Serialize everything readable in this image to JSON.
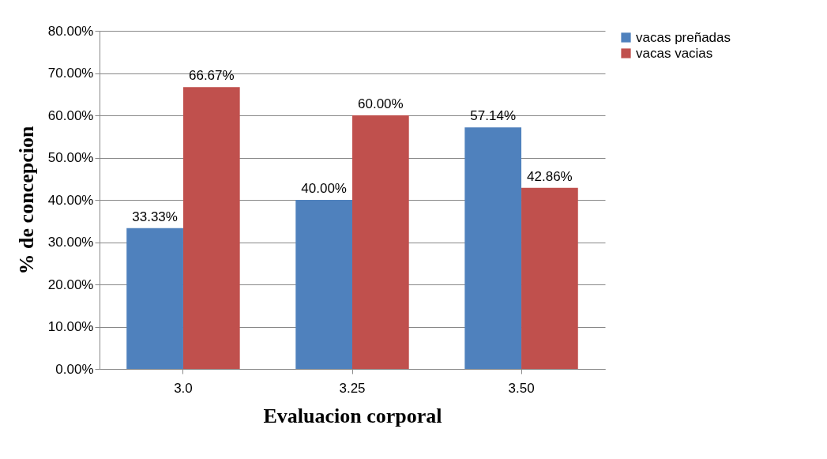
{
  "chart_data": {
    "type": "bar",
    "xlabel": "Evaluacion corporal",
    "ylabel": "% de concepcion",
    "categories": [
      "3.0",
      "3.25",
      "3.50"
    ],
    "series": [
      {
        "name": "vacas preñadas",
        "color": "#4f81bd",
        "values": [
          33.33,
          40.0,
          57.14
        ],
        "value_labels": [
          "33.33%",
          "40.00%",
          "57.14%"
        ]
      },
      {
        "name": "vacas vacias",
        "color": "#c0504d",
        "values": [
          66.67,
          60.0,
          42.86
        ],
        "value_labels": [
          "66.67%",
          "60.00%",
          "42.86%"
        ]
      }
    ],
    "ylim": [
      0,
      80
    ],
    "yticks": [
      {
        "value": 0,
        "label": "0.00%"
      },
      {
        "value": 10,
        "label": "10.00%"
      },
      {
        "value": 20,
        "label": "20.00%"
      },
      {
        "value": 30,
        "label": "30.00%"
      },
      {
        "value": 40,
        "label": "40.00%"
      },
      {
        "value": 50,
        "label": "50.00%"
      },
      {
        "value": 60,
        "label": "60.00%"
      },
      {
        "value": 70,
        "label": "70.00%"
      },
      {
        "value": 80,
        "label": "80.00%"
      }
    ],
    "grid": "y",
    "legend": "right"
  }
}
